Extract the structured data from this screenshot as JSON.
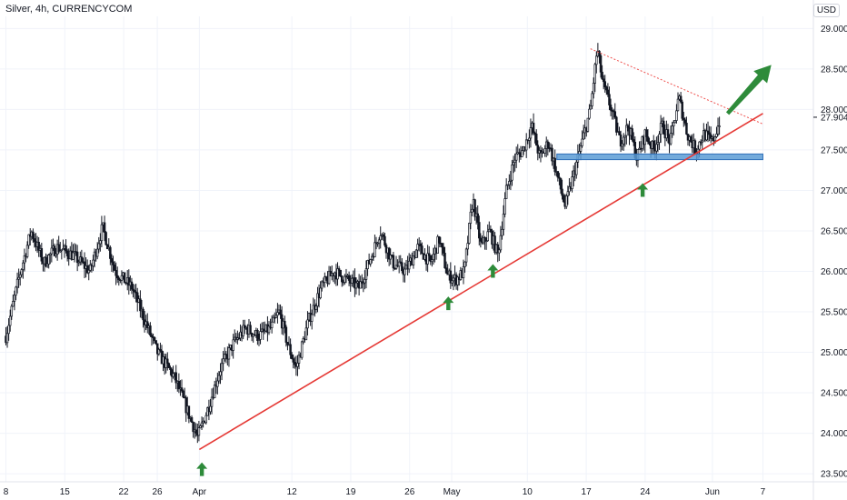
{
  "title": "Silver, 4h, CURRENCYCOM",
  "currency": "USD",
  "chart_data": {
    "type": "candlestick",
    "instrument": "Silver",
    "timeframe": "4h",
    "source": "CURRENCYCOM",
    "y_ticks": [
      "23.500",
      "24.000",
      "24.500",
      "25.000",
      "25.500",
      "26.000",
      "26.500",
      "27.000",
      "27.500",
      "28.000",
      "28.500",
      "29.000"
    ],
    "ylim": [
      23.4,
      29.15
    ],
    "x_ticks": [
      {
        "label": "8",
        "x": 0
      },
      {
        "label": "15",
        "x": 7
      },
      {
        "label": "22",
        "x": 14
      },
      {
        "label": "26",
        "x": 18
      },
      {
        "label": "Apr",
        "x": 23
      },
      {
        "label": "12",
        "x": 34
      },
      {
        "label": "19",
        "x": 41
      },
      {
        "label": "26",
        "x": 48
      },
      {
        "label": "May",
        "x": 53
      },
      {
        "label": "10",
        "x": 62
      },
      {
        "label": "17",
        "x": 69
      },
      {
        "label": "24",
        "x": 76
      },
      {
        "label": "Jun",
        "x": 84
      },
      {
        "label": "7",
        "x": 90
      }
    ],
    "xlim": [
      -0.7,
      96
    ],
    "last_price": "27.904",
    "price_path": [
      [
        0,
        25.2
      ],
      [
        1.5,
        25.9
      ],
      [
        3,
        26.5
      ],
      [
        4.5,
        26.1
      ],
      [
        6,
        26.3
      ],
      [
        8,
        26.2
      ],
      [
        10,
        26.0
      ],
      [
        11.5,
        26.55
      ],
      [
        13,
        26.0
      ],
      [
        15,
        25.8
      ],
      [
        16.5,
        25.4
      ],
      [
        18,
        25.0
      ],
      [
        20,
        24.7
      ],
      [
        21.5,
        24.3
      ],
      [
        22.8,
        23.95
      ],
      [
        24,
        24.3
      ],
      [
        25.5,
        24.8
      ],
      [
        27,
        25.1
      ],
      [
        28.5,
        25.3
      ],
      [
        30,
        25.2
      ],
      [
        31.5,
        25.3
      ],
      [
        32.5,
        25.5
      ],
      [
        33.5,
        25.1
      ],
      [
        34.5,
        24.8
      ],
      [
        36,
        25.4
      ],
      [
        37.5,
        25.8
      ],
      [
        39,
        26.0
      ],
      [
        40.5,
        25.9
      ],
      [
        42,
        25.8
      ],
      [
        43.5,
        26.2
      ],
      [
        44.5,
        26.5
      ],
      [
        46,
        26.1
      ],
      [
        47.5,
        26.0
      ],
      [
        49,
        26.3
      ],
      [
        50.5,
        26.1
      ],
      [
        51.5,
        26.4
      ],
      [
        52.5,
        25.95
      ],
      [
        53.5,
        25.9
      ],
      [
        54.5,
        26.0
      ],
      [
        55.5,
        26.9
      ],
      [
        56.5,
        26.3
      ],
      [
        57.5,
        26.5
      ],
      [
        58.5,
        26.2
      ],
      [
        59.5,
        27.0
      ],
      [
        60.5,
        27.4
      ],
      [
        61.5,
        27.5
      ],
      [
        62.5,
        27.8
      ],
      [
        63.5,
        27.4
      ],
      [
        64.5,
        27.6
      ],
      [
        65.5,
        27.2
      ],
      [
        66.5,
        26.8
      ],
      [
        67.5,
        27.2
      ],
      [
        68.5,
        27.6
      ],
      [
        69.5,
        28.0
      ],
      [
        70.3,
        28.75
      ],
      [
        71,
        28.3
      ],
      [
        72,
        28.0
      ],
      [
        73,
        27.6
      ],
      [
        74,
        27.8
      ],
      [
        75,
        27.4
      ],
      [
        76,
        27.7
      ],
      [
        77,
        27.5
      ],
      [
        78,
        27.8
      ],
      [
        79,
        27.6
      ],
      [
        80,
        28.15
      ],
      [
        81,
        27.7
      ],
      [
        82,
        27.5
      ],
      [
        83,
        27.7
      ],
      [
        84,
        27.6
      ],
      [
        85,
        27.9
      ]
    ],
    "annotations": {
      "support_trendline": {
        "from": [
          23,
          23.8
        ],
        "to": [
          90,
          27.95
        ],
        "color": "#e53935"
      },
      "resistance_trendline": {
        "from": [
          69.5,
          28.75
        ],
        "to": [
          90,
          27.82
        ],
        "color": "#ef5350",
        "style": "dotted"
      },
      "support_zone": {
        "x_from": 65.5,
        "x_to": 90,
        "y_low": 27.38,
        "y_high": 27.45,
        "color": "#5b9bd5"
      },
      "up_arrows": [
        [
          23.3,
          23.55
        ],
        [
          52.6,
          25.6
        ],
        [
          57.9,
          26.0
        ],
        [
          75.7,
          27.0
        ]
      ],
      "breakout_arrow": {
        "from": [
          85.8,
          27.95
        ],
        "to": [
          91,
          28.55
        ],
        "color": "#2e8b3a"
      },
      "arrow_color": "#2e8b3a"
    }
  }
}
